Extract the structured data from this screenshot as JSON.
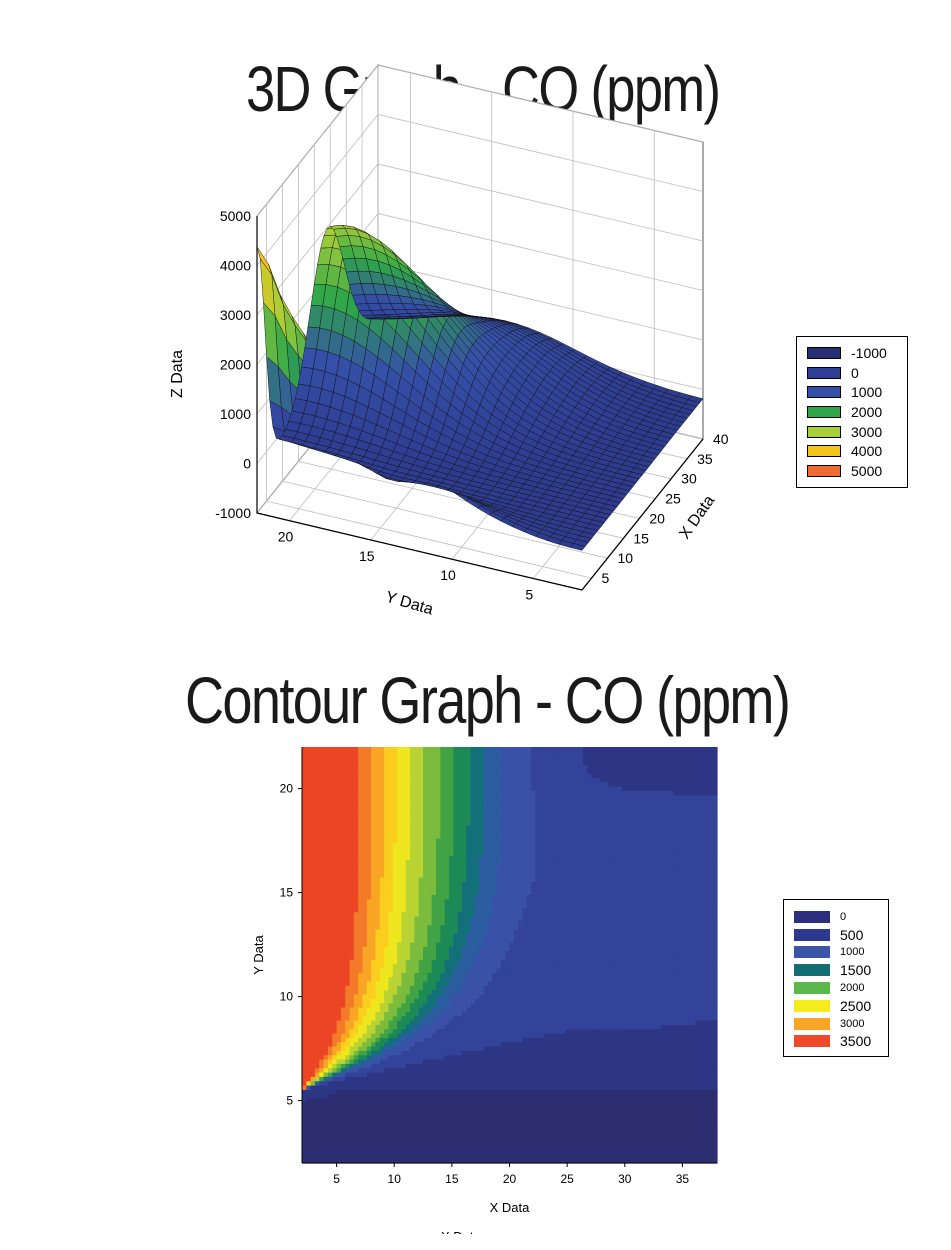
{
  "chart_data": [
    {
      "type": "surface3d",
      "title": "3D Graph - CO (ppm)",
      "xlabel": "X Data",
      "ylabel": "Y Data",
      "zlabel": "Z Data",
      "x_ticks": [
        "5",
        "10",
        "15",
        "20",
        "25",
        "30",
        "35",
        "40"
      ],
      "y_ticks": [
        "5",
        "10",
        "15",
        "20"
      ],
      "z_ticks": [
        "-1000",
        "0",
        "1000",
        "2000",
        "3000",
        "4000",
        "5000"
      ],
      "xlim": [
        2,
        40
      ],
      "ylim": [
        2,
        22
      ],
      "zlim": [
        -1000,
        5000
      ],
      "grid": true,
      "legend_position": "right",
      "legend": [
        {
          "label": "-1000",
          "color": "#2b2d73"
        },
        {
          "label": "0",
          "color": "#2f3f95"
        },
        {
          "label": "1000",
          "color": "#3550a8"
        },
        {
          "label": "2000",
          "color": "#2ea64a"
        },
        {
          "label": "3000",
          "color": "#a9cf38"
        },
        {
          "label": "4000",
          "color": "#f2c41c"
        },
        {
          "label": "5000",
          "color": "#f06a32"
        }
      ]
    },
    {
      "type": "contour",
      "title": "Contour Graph - CO (ppm)",
      "xlabel": "X Data",
      "ylabel": "Y Data",
      "x_ticks": [
        "5",
        "10",
        "15",
        "20",
        "25",
        "30",
        "35"
      ],
      "y_ticks": [
        "5",
        "10",
        "15",
        "20"
      ],
      "xlim": [
        2,
        38
      ],
      "ylim": [
        2,
        22
      ],
      "legend_position": "right",
      "legend": [
        {
          "label": "0",
          "color": "#2d2f7c"
        },
        {
          "label": "500",
          "color": "#2c3791"
        },
        {
          "label": "1000",
          "color": "#3b55a8"
        },
        {
          "label": "1500",
          "color": "#136e73"
        },
        {
          "label": "2000",
          "color": "#5bb84a"
        },
        {
          "label": "2500",
          "color": "#f4ec1c"
        },
        {
          "label": "3000",
          "color": "#f9a627"
        },
        {
          "label": "3500",
          "color": "#ee4a2a"
        }
      ]
    }
  ],
  "bottom_cut_label": "X Data"
}
